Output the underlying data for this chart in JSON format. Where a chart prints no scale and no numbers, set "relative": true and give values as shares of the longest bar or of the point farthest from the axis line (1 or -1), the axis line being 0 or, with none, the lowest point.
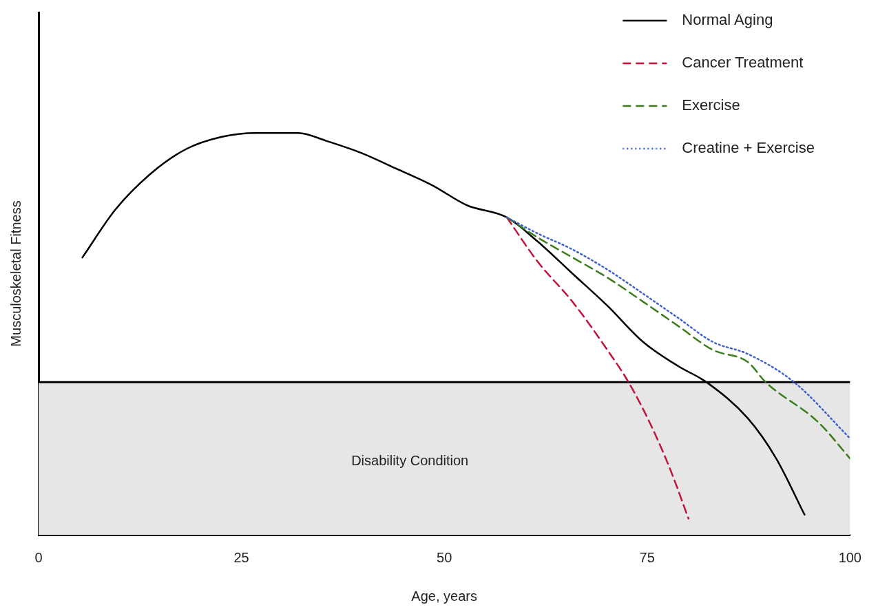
{
  "chart_data": {
    "type": "line",
    "relative": true,
    "xlabel": "Age, years",
    "ylabel": "Musculoskeletal Fitness",
    "xlim": [
      0,
      100
    ],
    "xticks": [
      0,
      25,
      50,
      75,
      100
    ],
    "grid": false,
    "legend": "top right",
    "series": [
      {
        "name": "Normal Aging",
        "color": "#000000",
        "line_style": "solid",
        "x": [
          5.4,
          9.5,
          13.9,
          18.2,
          22.5,
          26.8,
          29.4,
          32,
          35.5,
          39.8,
          44.2,
          48.5,
          52.8,
          57.7,
          61.5,
          65.8,
          70.1,
          74.5,
          78.8,
          82.3,
          87.4,
          90.9,
          94.4
        ],
        "values": [
          0.69,
          0.81,
          0.9,
          0.96,
          0.99,
          1,
          1,
          1,
          0.98,
          0.95,
          0.91,
          0.87,
          0.82,
          0.79,
          0.73,
          0.65,
          0.57,
          0.48,
          0.42,
          0.38,
          0.29,
          0.19,
          0.05
        ]
      },
      {
        "name": "Cancer Treatment",
        "color": "#c0143c",
        "line_style": "dashed",
        "x": [
          57.7,
          61.5,
          65.8,
          70.1,
          72.7,
          75.3,
          77.9,
          80.1
        ],
        "values": [
          0.79,
          0.68,
          0.58,
          0.46,
          0.38,
          0.28,
          0.16,
          0.04
        ]
      },
      {
        "name": "Exercise",
        "color": "#3a7d1a",
        "line_style": "dashed",
        "x": [
          57.7,
          61.5,
          65.8,
          70.1,
          74.5,
          78.8,
          83.1,
          87.4,
          89.6,
          96.1,
          100
        ],
        "values": [
          0.79,
          0.74,
          0.69,
          0.64,
          0.58,
          0.52,
          0.46,
          0.43,
          0.38,
          0.28,
          0.19
        ]
      },
      {
        "name": "Creatine + Exercise",
        "color": "#4060d0",
        "line_style": "dotted",
        "x": [
          57.7,
          61.5,
          65.8,
          70.1,
          74.5,
          78.8,
          83.1,
          87.4,
          93.1,
          100
        ],
        "values": [
          0.79,
          0.75,
          0.71,
          0.66,
          0.6,
          0.54,
          0.48,
          0.45,
          0.38,
          0.24
        ]
      }
    ],
    "ref_lines": [
      {
        "axis": "y",
        "value": 0.38,
        "color": "#000000"
      }
    ],
    "bands": [
      {
        "axis": "y",
        "from": 0,
        "to": 0.38,
        "label": "Disability Condition",
        "color": "#e6e6e6"
      }
    ]
  }
}
